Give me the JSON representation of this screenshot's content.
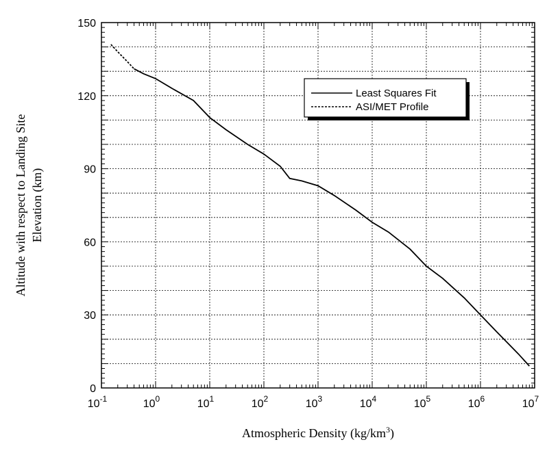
{
  "chart_data": {
    "type": "line",
    "title": "",
    "xlabel": "Atmospheric Density (kg/km",
    "xlabel_sup": "3",
    "xlabel_end": ")",
    "ylabel_line1": "Altitude with respect to Landing Site",
    "ylabel_line2": "Elevation (km)",
    "xscale": "log",
    "xlim": [
      0.1,
      10000000
    ],
    "ylim": [
      0,
      150
    ],
    "grid": true,
    "legend_position": "top-right",
    "x_tick_labels": [
      {
        "base": "10",
        "exp": "-1"
      },
      {
        "base": "10",
        "exp": "0"
      },
      {
        "base": "10",
        "exp": "1"
      },
      {
        "base": "10",
        "exp": "2"
      },
      {
        "base": "10",
        "exp": "3"
      },
      {
        "base": "10",
        "exp": "4"
      },
      {
        "base": "10",
        "exp": "5"
      },
      {
        "base": "10",
        "exp": "6"
      },
      {
        "base": "10",
        "exp": "7"
      }
    ],
    "y_tick_labels": [
      "0",
      "30",
      "60",
      "90",
      "120",
      "150"
    ],
    "series": [
      {
        "name": "Least Squares Fit",
        "style": "solid",
        "x": [
          0.4,
          0.6,
          1,
          2,
          5,
          10,
          20,
          50,
          100,
          200,
          300,
          500,
          1000,
          2000,
          5000,
          10000,
          20000,
          50000,
          100000,
          200000,
          500000,
          1000000,
          2000000,
          5000000,
          8000000
        ],
        "y": [
          131,
          129,
          127,
          123,
          118,
          111,
          106,
          100,
          96,
          91,
          86,
          85,
          83,
          79,
          73,
          68,
          64,
          57,
          50,
          45,
          37,
          30,
          23,
          14,
          9
        ]
      },
      {
        "name": "ASI/MET Profile",
        "style": "dashed",
        "x": [
          0.15,
          0.2,
          0.3,
          0.4
        ],
        "y": [
          141,
          138,
          134,
          131
        ]
      }
    ]
  }
}
